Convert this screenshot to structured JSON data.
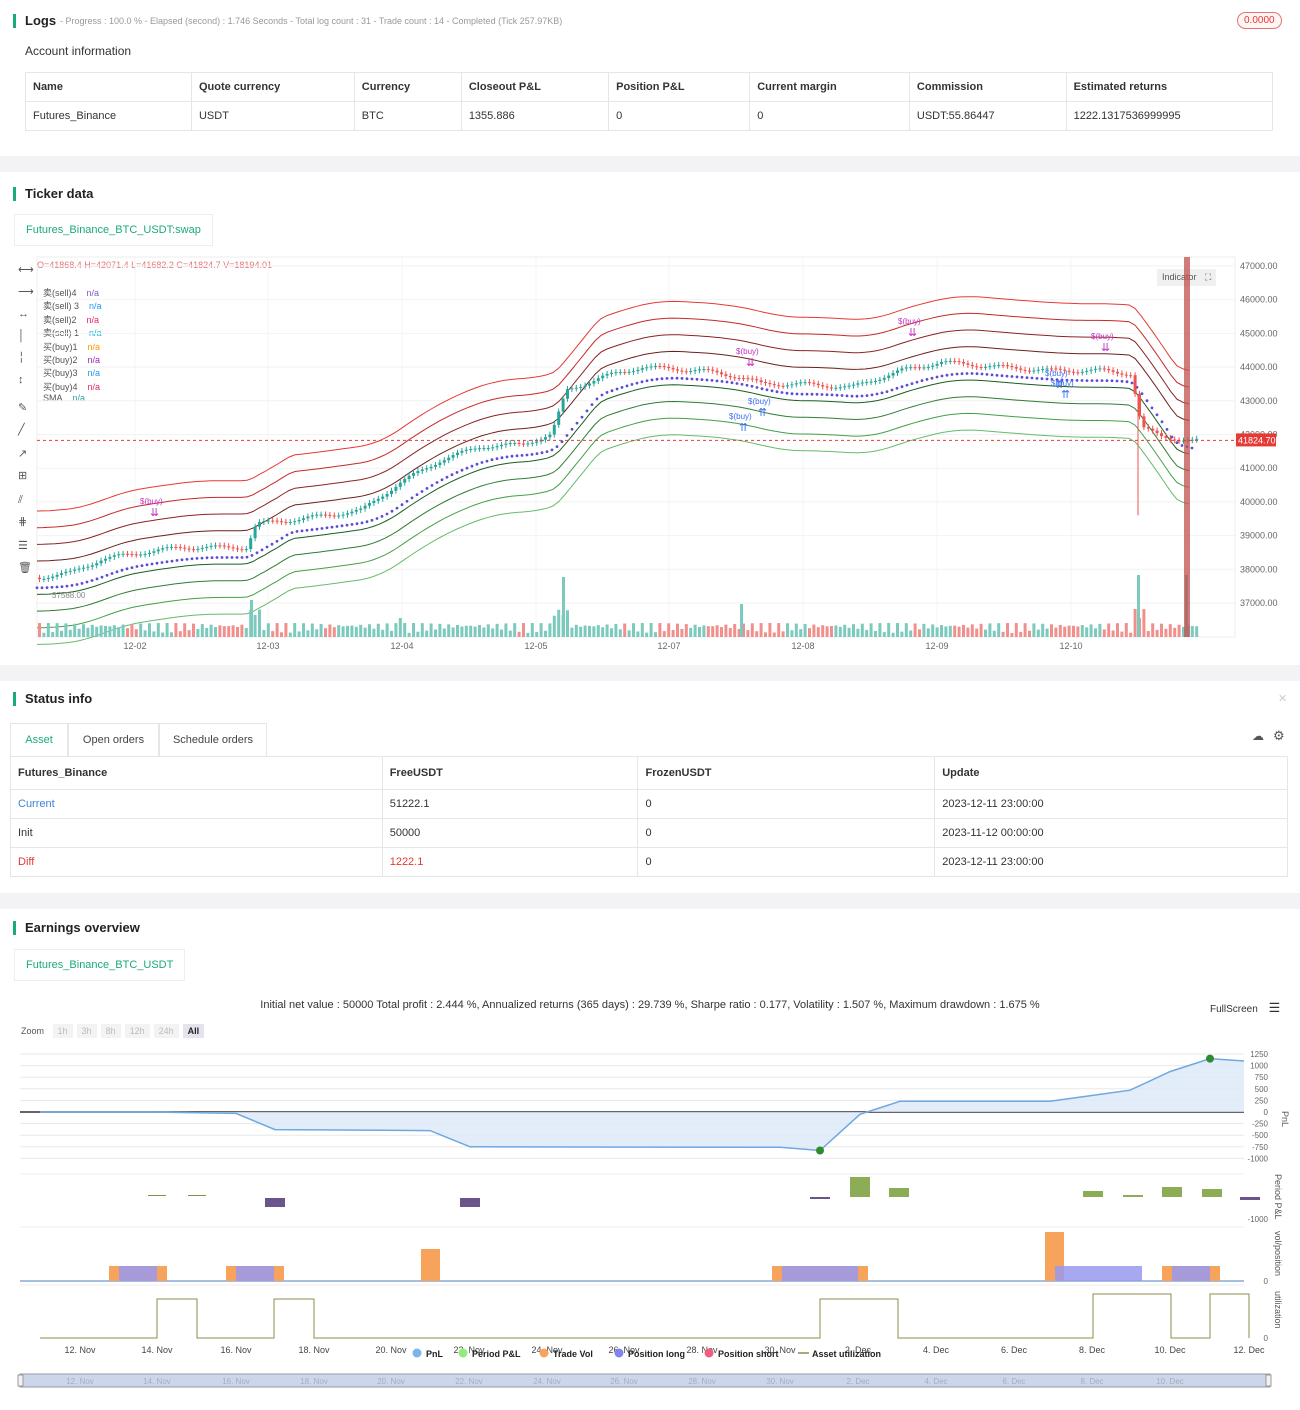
{
  "logs": {
    "title": "Logs",
    "summary": "- Progress : 100.0 % - Elapsed (second) : 1.746  Seconds - Total log count : 31 - Trade count : 14 - Completed (Tick 257.97KB)",
    "badge": "0.0000"
  },
  "account": {
    "heading": "Account information",
    "columns": [
      "Name",
      "Quote currency",
      "Currency",
      "Closeout P&L",
      "Position P&L",
      "Current margin",
      "Commission",
      "Estimated returns"
    ],
    "row": [
      "Futures_Binance",
      "USDT",
      "BTC",
      "1355.886",
      "0",
      "0",
      "USDT:55.86447",
      "1222.1317536999995"
    ]
  },
  "ticker": {
    "title": "Ticker data",
    "tab": "Futures_Binance_BTC_USDT:swap",
    "ohlc": "O=41868.4 H=42071.4 L=41682.2 C=41824.7 V=18194.01",
    "indicator_btn": "Indicator",
    "price_tag": "41824.70",
    "low_label": "37588.00",
    "legend": [
      {
        "name": "卖(sell)4",
        "val": "n/a",
        "color": "#7e57c2"
      },
      {
        "name": "卖(sell) 3",
        "val": "n/a",
        "color": "#2196f3"
      },
      {
        "name": "卖(sell)2",
        "val": "n/a",
        "color": "#e91e63"
      },
      {
        "name": "卖(sell) 1",
        "val": "n/a",
        "color": "#00bcd4"
      },
      {
        "name": "买(buy)1",
        "val": "n/a",
        "color": "#ff9800"
      },
      {
        "name": "买(buy)2",
        "val": "n/a",
        "color": "#9c27b0"
      },
      {
        "name": "买(buy)3",
        "val": "n/a",
        "color": "#2196f3"
      },
      {
        "name": "买(buy)4",
        "val": "n/a",
        "color": "#e91e63"
      },
      {
        "name": "SMA",
        "val": "n/a",
        "color": "#26a69a"
      }
    ],
    "y_ticks": [
      "47000.00",
      "46000.00",
      "45000.00",
      "44000.00",
      "43000.00",
      "42000.00",
      "41000.00",
      "40000.00",
      "39000.00",
      "38000.00",
      "37000.00"
    ],
    "x_ticks": [
      "12-02",
      "12-03",
      "12-04",
      "12-05",
      "12-07",
      "12-08",
      "12-09",
      "12-10"
    ],
    "trade_labels": [
      "$(buy)",
      "$(buy)",
      "$(buy)",
      "$(buy)",
      "$(buy)",
      "$(buy)",
      "$(buy)",
      "$(buy)"
    ]
  },
  "status": {
    "title": "Status info",
    "tabs": [
      "Asset",
      "Open orders",
      "Schedule orders"
    ],
    "columns": [
      "Futures_Binance",
      "FreeUSDT",
      "FrozenUSDT",
      "Update"
    ],
    "rows": [
      [
        "Current",
        "51222.1",
        "0",
        "2023-12-11 23:00:00"
      ],
      [
        "Init",
        "50000",
        "0",
        "2023-11-12 00:00:00"
      ],
      [
        "Diff",
        "1222.1",
        "0",
        "2023-12-11 23:00:00"
      ]
    ]
  },
  "earnings": {
    "title": "Earnings overview",
    "tab": "Futures_Binance_BTC_USDT",
    "summary": "Initial net value : 50000 Total profit : 2.444 %, Annualized returns (365 days) : 29.739 %, Sharpe ratio : 0.177, Volatility : 1.507 %, Maximum drawdown : 1.675 %",
    "fullscreen": "FullScreen",
    "zoom_label": "Zoom",
    "zoom_opts": [
      "1h",
      "3h",
      "8h",
      "12h",
      "24h",
      "All"
    ],
    "pnl_ticks": [
      "1250",
      "1000",
      "750",
      "500",
      "250",
      "0",
      "-250",
      "-500",
      "-750",
      "-1000"
    ],
    "axis_titles": [
      "PnL",
      "Period P&L",
      "vol/position",
      "utilization"
    ],
    "period_tick": "-1000",
    "vol_tick": "0",
    "util_tick": "0",
    "x_ticks": [
      "12. Nov",
      "14. Nov",
      "16. Nov",
      "18. Nov",
      "20. Nov",
      "22. Nov",
      "24. Nov",
      "26. Nov",
      "28. Nov",
      "30. Nov",
      "2. Dec",
      "4. Dec",
      "6. Dec",
      "8. Dec",
      "10. Dec",
      "12. Dec"
    ],
    "nav_ticks": [
      "12. Nov",
      "14. Nov",
      "16. Nov",
      "18. Nov",
      "20. Nov",
      "22. Nov",
      "24. Nov",
      "26. Nov",
      "28. Nov",
      "30. Nov",
      "2. Dec",
      "4. Dec",
      "6. Dec",
      "8. Dec",
      "10. Dec"
    ],
    "legend": [
      {
        "name": "PnL",
        "color": "#7cb5ec"
      },
      {
        "name": "Period P&L",
        "color": "#90ed7d"
      },
      {
        "name": "Trade Vol",
        "color": "#f7a35c"
      },
      {
        "name": "Position long",
        "color": "#8085e9"
      },
      {
        "name": "Position short",
        "color": "#f15c80"
      },
      {
        "name": "Asset utilization",
        "color": "#8d8d4c"
      }
    ]
  }
}
